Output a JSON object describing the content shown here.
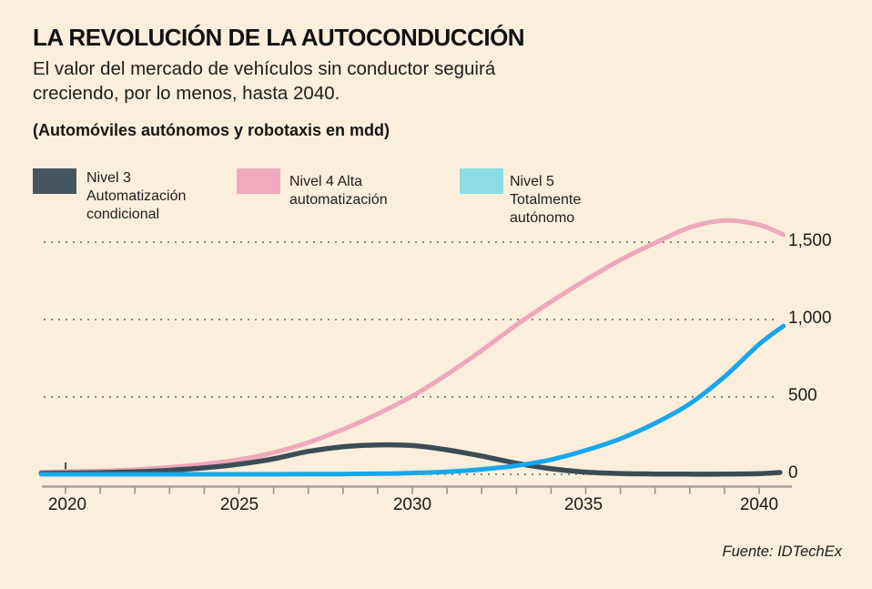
{
  "header": {
    "title": "LA REVOLUCIÓN DE LA AUTOCONDUCCIÓN",
    "subtitle": "El valor del mercado de vehículos sin conductor seguirá\ncreciendo, por lo menos, hasta 2040.",
    "unit_note": "(Automóviles autónomos y robotaxis en mdd)"
  },
  "source": "Fuente: IDTechEx",
  "colors": {
    "background": "#fbeedb",
    "axis_line": "#a8a19a",
    "grid_dots": "#8e887f",
    "tick_marks": "#97918a",
    "origin_tick": "#4c4c48"
  },
  "chart_data": {
    "type": "line",
    "title": "LA REVOLUCIÓN DE LA AUTOCONDUCCIÓN",
    "unit_note": "(Automóviles autónomos y robotaxis en mdd)",
    "grid": "dotted-horizontal",
    "y_labels_side": "right",
    "legend_position": "top-left",
    "x_range": [
      2019.3,
      2040.7
    ],
    "ylim": [
      0,
      1700
    ],
    "x_tick_labels": [
      "2020",
      "2025",
      "2030",
      "2035",
      "2040"
    ],
    "x_tick_years": [
      2020,
      2025,
      2030,
      2035,
      2040
    ],
    "minor_ticks": "every-year",
    "y_ticks": [
      {
        "value": 1500,
        "label": "1,500"
      },
      {
        "value": 1000,
        "label": "1,000"
      },
      {
        "value": 500,
        "label": "500"
      },
      {
        "value": 0,
        "label": "0"
      }
    ],
    "series": [
      {
        "name": "Nivel 3 Automatización condicional",
        "legend_label": "Nivel 3 Automatización\ncondicional",
        "color": "#3c4c56",
        "swatch": "#46565f",
        "points": [
          [
            2019.3,
            6
          ],
          [
            2020,
            8
          ],
          [
            2021,
            11
          ],
          [
            2022,
            16
          ],
          [
            2023,
            26
          ],
          [
            2024,
            42
          ],
          [
            2025,
            65
          ],
          [
            2026,
            100
          ],
          [
            2027,
            148
          ],
          [
            2028,
            178
          ],
          [
            2029,
            190
          ],
          [
            2030,
            186
          ],
          [
            2031,
            158
          ],
          [
            2032,
            118
          ],
          [
            2033,
            72
          ],
          [
            2034,
            36
          ],
          [
            2035,
            14
          ],
          [
            2036,
            5
          ],
          [
            2037,
            2
          ],
          [
            2038,
            1
          ],
          [
            2039,
            1
          ],
          [
            2040,
            4
          ],
          [
            2040.6,
            12
          ]
        ]
      },
      {
        "name": "Nivel 4 Alta automatización",
        "legend_label": "Nivel 4 Alta automatización",
        "color": "#eea8ba",
        "swatch": "#efaabc",
        "points": [
          [
            2019.3,
            15
          ],
          [
            2020,
            18
          ],
          [
            2021,
            22
          ],
          [
            2022,
            30
          ],
          [
            2023,
            45
          ],
          [
            2024,
            66
          ],
          [
            2025,
            95
          ],
          [
            2026,
            140
          ],
          [
            2027,
            205
          ],
          [
            2028,
            290
          ],
          [
            2029,
            390
          ],
          [
            2030,
            505
          ],
          [
            2031,
            645
          ],
          [
            2032,
            800
          ],
          [
            2033,
            965
          ],
          [
            2034,
            1115
          ],
          [
            2035,
            1255
          ],
          [
            2036,
            1385
          ],
          [
            2037,
            1495
          ],
          [
            2038,
            1595
          ],
          [
            2039,
            1640
          ],
          [
            2040,
            1612
          ],
          [
            2040.7,
            1548
          ]
        ]
      },
      {
        "name": "Nivel 5 Totalmente autónomo",
        "legend_label": "Nivel 5 Totalmente autónomo",
        "color": "#18a6ec",
        "swatch": "#8ddde6",
        "points": [
          [
            2019.3,
            0
          ],
          [
            2020,
            0
          ],
          [
            2021,
            0
          ],
          [
            2022,
            0
          ],
          [
            2023,
            0
          ],
          [
            2024,
            0
          ],
          [
            2025,
            0
          ],
          [
            2026,
            0
          ],
          [
            2027,
            1
          ],
          [
            2028,
            2
          ],
          [
            2029,
            4
          ],
          [
            2030,
            8
          ],
          [
            2031,
            16
          ],
          [
            2032,
            32
          ],
          [
            2033,
            56
          ],
          [
            2034,
            95
          ],
          [
            2035,
            155
          ],
          [
            2036,
            230
          ],
          [
            2037,
            330
          ],
          [
            2038,
            455
          ],
          [
            2039,
            630
          ],
          [
            2040,
            840
          ],
          [
            2040.7,
            958
          ]
        ]
      }
    ]
  }
}
